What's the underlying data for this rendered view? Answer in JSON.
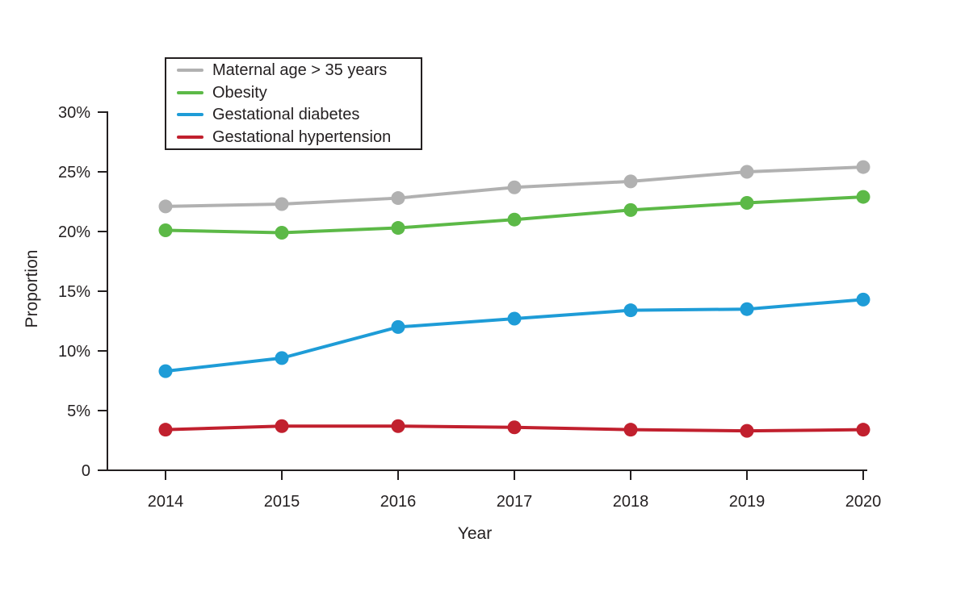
{
  "chart_data": {
    "type": "line",
    "title": "",
    "xlabel": "Year",
    "ylabel": "Proportion",
    "x": [
      2014,
      2015,
      2016,
      2017,
      2018,
      2019,
      2020
    ],
    "ylim": [
      0,
      30
    ],
    "yticks": [
      0,
      5,
      10,
      15,
      20,
      25,
      30
    ],
    "ytick_labels": [
      "0",
      "5%",
      "10%",
      "15%",
      "20%",
      "25%",
      "30%"
    ],
    "grid": false,
    "legend_position": "inside-top-left",
    "series": [
      {
        "name": "Maternal age > 35 years",
        "color": "#b1b1b1",
        "values": [
          22.1,
          22.3,
          22.8,
          23.7,
          24.2,
          25.0,
          25.4
        ]
      },
      {
        "name": "Obesity",
        "color": "#5cb947",
        "values": [
          20.1,
          19.9,
          20.3,
          21.0,
          21.8,
          22.4,
          22.9
        ]
      },
      {
        "name": "Gestational diabetes",
        "color": "#1e9cd7",
        "values": [
          8.3,
          9.4,
          12.0,
          12.7,
          13.4,
          13.5,
          14.3
        ]
      },
      {
        "name": "Gestational hypertension",
        "color": "#c1202e",
        "values": [
          3.4,
          3.7,
          3.7,
          3.6,
          3.4,
          3.3,
          3.4
        ]
      }
    ]
  },
  "colors": {
    "background": "#ffffff",
    "axis": "#231f20",
    "text": "#231f20"
  }
}
